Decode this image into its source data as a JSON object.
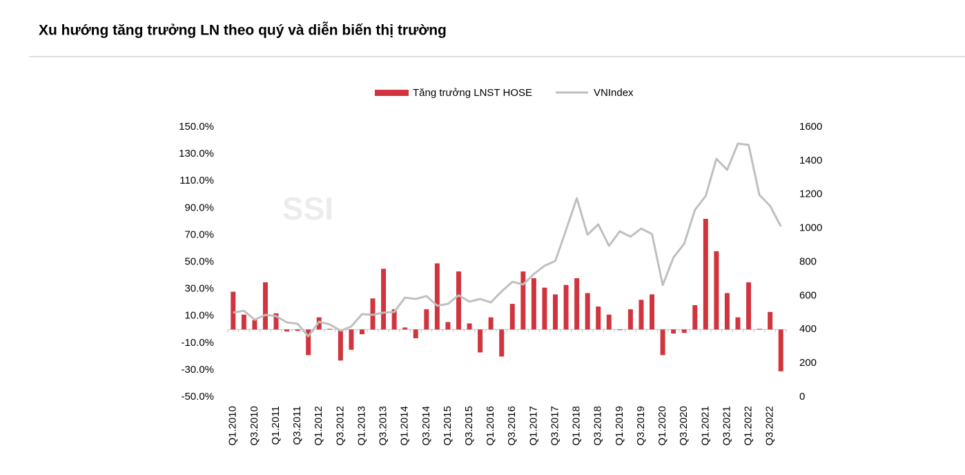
{
  "chart_data": {
    "type": "bar",
    "title": "Xu hướng tăng trưởng LN theo quý và diễn biến thị trường",
    "watermark": "SSI",
    "categories": [
      "Q1.2010",
      null,
      "Q3.2010",
      null,
      "Q1.2011",
      null,
      "Q3.2011",
      null,
      "Q1.2012",
      null,
      "Q3.2012",
      null,
      "Q1.2013",
      null,
      "Q3.2013",
      null,
      "Q1.2014",
      null,
      "Q3.2014",
      null,
      "Q1.2015",
      null,
      "Q3.2015",
      null,
      "Q1.2016",
      null,
      "Q3.2016",
      null,
      "Q1.2017",
      null,
      "Q3.2017",
      null,
      "Q1.2018",
      null,
      "Q3.2018",
      null,
      "Q1.2019",
      null,
      "Q3.2019",
      null,
      "Q1.2020",
      null,
      "Q3.2020",
      null,
      "Q1.2021",
      null,
      "Q3.2021",
      null,
      "Q1.2022",
      null,
      "Q3.2022",
      null
    ],
    "series": [
      {
        "name": "Tăng trưởng LNST HOSE",
        "type": "bar",
        "color": "#d0353f",
        "values": [
          28,
          11,
          7,
          35,
          12,
          -1.5,
          -1,
          -19,
          9,
          0.5,
          -23,
          -15,
          -3.5,
          23,
          45,
          15,
          1.5,
          -6.5,
          15,
          49,
          5.5,
          43,
          4.5,
          -17,
          9,
          -20,
          19,
          43,
          38,
          31,
          26,
          33,
          38,
          27,
          17,
          11,
          -0.5,
          15,
          22,
          26,
          -19,
          -3,
          -2.5,
          18,
          82,
          58,
          27,
          9,
          35,
          0.5,
          13,
          -31
        ]
      },
      {
        "name": "VNIndex",
        "type": "line",
        "axis": "y2",
        "color": "#bfbfbf",
        "values": [
          500,
          511,
          458,
          487,
          479,
          442,
          434,
          360,
          446,
          430,
          393,
          418,
          491,
          487,
          500,
          504,
          589,
          581,
          598,
          541,
          552,
          603,
          565,
          581,
          561,
          626,
          683,
          667,
          728,
          778,
          806,
          990,
          1178,
          962,
          1023,
          896,
          982,
          950,
          998,
          966,
          663,
          827,
          908,
          1109,
          1191,
          1412,
          1346,
          1502,
          1494,
          1198,
          1133,
          1011
        ]
      }
    ],
    "ylim": [
      -50,
      150
    ],
    "yticks": [
      {
        "value": 150,
        "label": "150.0%"
      },
      {
        "value": 130,
        "label": "130.0%"
      },
      {
        "value": 110,
        "label": "110.0%"
      },
      {
        "value": 90,
        "label": "90.0%"
      },
      {
        "value": 70,
        "label": "70.0%"
      },
      {
        "value": 50,
        "label": "50.0%"
      },
      {
        "value": 30,
        "label": "30.0%"
      },
      {
        "value": 10,
        "label": "10.0%"
      },
      {
        "value": -10,
        "label": "-10.0%"
      },
      {
        "value": -30,
        "label": "-30.0%"
      },
      {
        "value": -50,
        "label": "-50.0%"
      }
    ],
    "y2lim": [
      0,
      1600
    ],
    "y2ticks": [
      1600,
      1400,
      1200,
      1000,
      800,
      600,
      400,
      200,
      0
    ],
    "legend": "top",
    "grid": false
  }
}
